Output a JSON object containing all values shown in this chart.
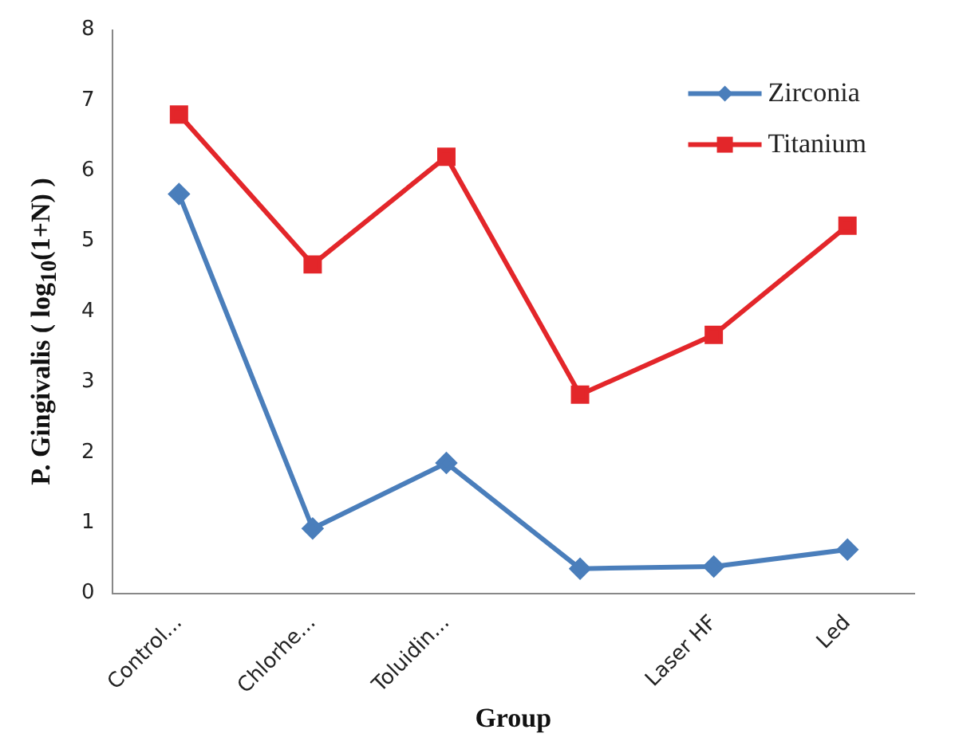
{
  "chart_data": {
    "type": "line",
    "xlabel": "Group",
    "ylabel": "P. Gingivalis ( log$_{10}$(1+N) )",
    "categories": [
      "Control...",
      "Chlorhe...",
      "Toluidin...",
      null,
      "Laser HF",
      "Led"
    ],
    "series": [
      {
        "name": "Zirconia",
        "color": "#4a7ebb",
        "marker": "diamond",
        "values": [
          5.67,
          0.92,
          1.85,
          0.35,
          0.38,
          0.62
        ]
      },
      {
        "name": "Titanium",
        "color": "#e3262a",
        "marker": "square",
        "values": [
          6.8,
          4.67,
          6.2,
          2.82,
          3.67,
          5.22
        ]
      }
    ],
    "ylim": [
      0,
      8
    ],
    "yticks": [
      0,
      1,
      2,
      3,
      4,
      5,
      6,
      7,
      8
    ],
    "grid": false,
    "legend": "top right",
    "line_style": "solid"
  }
}
